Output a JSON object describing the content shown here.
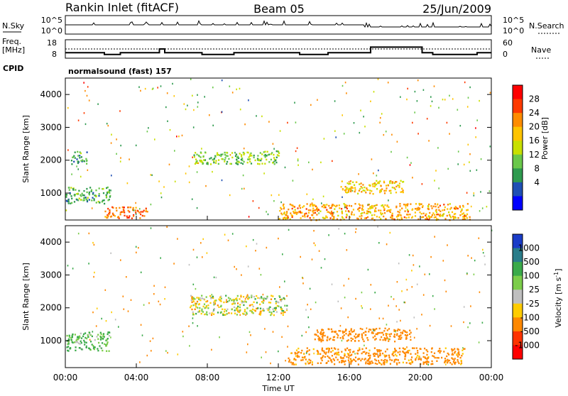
{
  "header": {
    "station": "Rankin Inlet (fitACF)",
    "beam": "Beam 05",
    "date": "25/Jun/2009"
  },
  "status_panels": {
    "nsky_label": "N.Sky",
    "nsky_ticks": [
      "10^5",
      "10^0"
    ],
    "nsearch_label": "N.Search",
    "nsearch_ticks": [
      "10^5",
      "10^0"
    ],
    "freq_label": "Freq.",
    "freq_unit": "[MHz]",
    "freq_ticks": [
      "18",
      "8"
    ],
    "nave_label": "Nave",
    "nave_ticks": [
      "60",
      "0"
    ],
    "cpid_label": "CPID",
    "cpid_value": "normalsound (fast) 157"
  },
  "chart_data": [
    {
      "type": "heatmap",
      "name": "power",
      "ylabel": "Slant Range [km]",
      "xlabel": "",
      "ylim": [
        180,
        4500
      ],
      "xlim": [
        "00:00",
        "24:00"
      ],
      "y_ticks": [
        "1000",
        "2000",
        "3000",
        "4000"
      ],
      "colorbar_label": "Power [dB]",
      "colorbar_ticks": [
        "28",
        "24",
        "20",
        "16",
        "12",
        "8",
        "4"
      ],
      "colorbar_colors": [
        "#ff0000",
        "#ff3a00",
        "#ff8c00",
        "#ffc400",
        "#c8e000",
        "#6ac84a",
        "#2e9a4e",
        "#1f4fb4",
        "#0000ff"
      ],
      "features": [
        {
          "range_km": [
            250,
            600
          ],
          "hours": [
            2.2,
            4.6
          ],
          "level_db": 26
        },
        {
          "range_km": [
            200,
            700
          ],
          "hours": [
            12.0,
            22.8
          ],
          "level_db": 22
        },
        {
          "range_km": [
            1000,
            1400
          ],
          "hours": [
            15.5,
            19.0
          ],
          "level_db": 20
        },
        {
          "range_km": [
            1900,
            2300
          ],
          "hours": [
            0.3,
            1.2
          ],
          "level_db": 10
        },
        {
          "range_km": [
            1900,
            2300
          ],
          "hours": [
            7.2,
            12.0
          ],
          "level_db": 12
        },
        {
          "range_km": [
            700,
            1200
          ],
          "hours": [
            0.0,
            2.5
          ],
          "level_db": 10
        }
      ]
    },
    {
      "type": "heatmap",
      "name": "velocity",
      "ylabel": "Slant Range [km]",
      "xlabel": "Time UT",
      "ylim": [
        180,
        4500
      ],
      "xlim": [
        "00:00",
        "24:00"
      ],
      "x_ticks": [
        "00:00",
        "04:00",
        "08:00",
        "12:00",
        "16:00",
        "20:00",
        "00:00"
      ],
      "y_ticks": [
        "1000",
        "2000",
        "3000",
        "4000"
      ],
      "colorbar_label": "Velocity [m s",
      "colorbar_label_sup": "-1",
      "colorbar_label_end": "]",
      "colorbar_ticks": [
        "1000",
        "500",
        "100",
        "25",
        "-25",
        "-100",
        "-500",
        "-1000"
      ],
      "colorbar_colors": [
        "#1a3cc8",
        "#2a7d8a",
        "#3aaa4a",
        "#7ccd4a",
        "#bfbfbf",
        "#ffcc00",
        "#ff8800",
        "#ff3300",
        "#ff0000"
      ],
      "features": [
        {
          "range_km": [
            1000,
            1400
          ],
          "hours": [
            14.0,
            19.5
          ],
          "velocity_ms": -300
        },
        {
          "range_km": [
            300,
            800
          ],
          "hours": [
            12.5,
            22.5
          ],
          "velocity_ms": -200
        },
        {
          "range_km": [
            1800,
            2400
          ],
          "hours": [
            7.0,
            12.5
          ],
          "velocity_ms": 0
        },
        {
          "range_km": [
            700,
            1300
          ],
          "hours": [
            0.0,
            2.5
          ],
          "velocity_ms": 120
        }
      ]
    }
  ]
}
